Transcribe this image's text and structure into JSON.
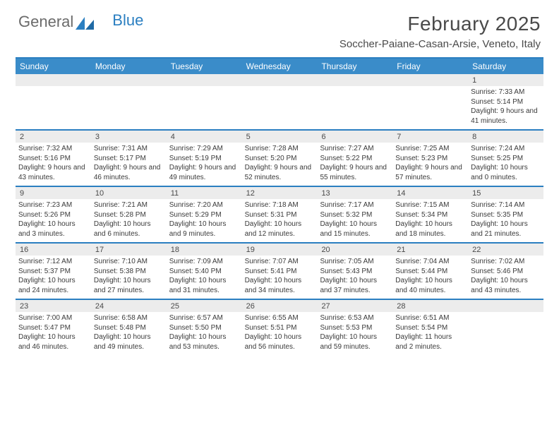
{
  "logo": {
    "part1": "General",
    "part2": "Blue"
  },
  "title": "February 2025",
  "location": "Soccher-Paiane-Casan-Arsie, Veneto, Italy",
  "colors": {
    "accent": "#2b7fc1",
    "header_bg": "#3a8cc9",
    "band_bg": "#ececec",
    "text": "#3a3a3a"
  },
  "day_headers": [
    "Sunday",
    "Monday",
    "Tuesday",
    "Wednesday",
    "Thursday",
    "Friday",
    "Saturday"
  ],
  "weeks": [
    [
      {
        "n": "",
        "sr": "",
        "ss": "",
        "dl": ""
      },
      {
        "n": "",
        "sr": "",
        "ss": "",
        "dl": ""
      },
      {
        "n": "",
        "sr": "",
        "ss": "",
        "dl": ""
      },
      {
        "n": "",
        "sr": "",
        "ss": "",
        "dl": ""
      },
      {
        "n": "",
        "sr": "",
        "ss": "",
        "dl": ""
      },
      {
        "n": "",
        "sr": "",
        "ss": "",
        "dl": ""
      },
      {
        "n": "1",
        "sr": "Sunrise: 7:33 AM",
        "ss": "Sunset: 5:14 PM",
        "dl": "Daylight: 9 hours and 41 minutes."
      }
    ],
    [
      {
        "n": "2",
        "sr": "Sunrise: 7:32 AM",
        "ss": "Sunset: 5:16 PM",
        "dl": "Daylight: 9 hours and 43 minutes."
      },
      {
        "n": "3",
        "sr": "Sunrise: 7:31 AM",
        "ss": "Sunset: 5:17 PM",
        "dl": "Daylight: 9 hours and 46 minutes."
      },
      {
        "n": "4",
        "sr": "Sunrise: 7:29 AM",
        "ss": "Sunset: 5:19 PM",
        "dl": "Daylight: 9 hours and 49 minutes."
      },
      {
        "n": "5",
        "sr": "Sunrise: 7:28 AM",
        "ss": "Sunset: 5:20 PM",
        "dl": "Daylight: 9 hours and 52 minutes."
      },
      {
        "n": "6",
        "sr": "Sunrise: 7:27 AM",
        "ss": "Sunset: 5:22 PM",
        "dl": "Daylight: 9 hours and 55 minutes."
      },
      {
        "n": "7",
        "sr": "Sunrise: 7:25 AM",
        "ss": "Sunset: 5:23 PM",
        "dl": "Daylight: 9 hours and 57 minutes."
      },
      {
        "n": "8",
        "sr": "Sunrise: 7:24 AM",
        "ss": "Sunset: 5:25 PM",
        "dl": "Daylight: 10 hours and 0 minutes."
      }
    ],
    [
      {
        "n": "9",
        "sr": "Sunrise: 7:23 AM",
        "ss": "Sunset: 5:26 PM",
        "dl": "Daylight: 10 hours and 3 minutes."
      },
      {
        "n": "10",
        "sr": "Sunrise: 7:21 AM",
        "ss": "Sunset: 5:28 PM",
        "dl": "Daylight: 10 hours and 6 minutes."
      },
      {
        "n": "11",
        "sr": "Sunrise: 7:20 AM",
        "ss": "Sunset: 5:29 PM",
        "dl": "Daylight: 10 hours and 9 minutes."
      },
      {
        "n": "12",
        "sr": "Sunrise: 7:18 AM",
        "ss": "Sunset: 5:31 PM",
        "dl": "Daylight: 10 hours and 12 minutes."
      },
      {
        "n": "13",
        "sr": "Sunrise: 7:17 AM",
        "ss": "Sunset: 5:32 PM",
        "dl": "Daylight: 10 hours and 15 minutes."
      },
      {
        "n": "14",
        "sr": "Sunrise: 7:15 AM",
        "ss": "Sunset: 5:34 PM",
        "dl": "Daylight: 10 hours and 18 minutes."
      },
      {
        "n": "15",
        "sr": "Sunrise: 7:14 AM",
        "ss": "Sunset: 5:35 PM",
        "dl": "Daylight: 10 hours and 21 minutes."
      }
    ],
    [
      {
        "n": "16",
        "sr": "Sunrise: 7:12 AM",
        "ss": "Sunset: 5:37 PM",
        "dl": "Daylight: 10 hours and 24 minutes."
      },
      {
        "n": "17",
        "sr": "Sunrise: 7:10 AM",
        "ss": "Sunset: 5:38 PM",
        "dl": "Daylight: 10 hours and 27 minutes."
      },
      {
        "n": "18",
        "sr": "Sunrise: 7:09 AM",
        "ss": "Sunset: 5:40 PM",
        "dl": "Daylight: 10 hours and 31 minutes."
      },
      {
        "n": "19",
        "sr": "Sunrise: 7:07 AM",
        "ss": "Sunset: 5:41 PM",
        "dl": "Daylight: 10 hours and 34 minutes."
      },
      {
        "n": "20",
        "sr": "Sunrise: 7:05 AM",
        "ss": "Sunset: 5:43 PM",
        "dl": "Daylight: 10 hours and 37 minutes."
      },
      {
        "n": "21",
        "sr": "Sunrise: 7:04 AM",
        "ss": "Sunset: 5:44 PM",
        "dl": "Daylight: 10 hours and 40 minutes."
      },
      {
        "n": "22",
        "sr": "Sunrise: 7:02 AM",
        "ss": "Sunset: 5:46 PM",
        "dl": "Daylight: 10 hours and 43 minutes."
      }
    ],
    [
      {
        "n": "23",
        "sr": "Sunrise: 7:00 AM",
        "ss": "Sunset: 5:47 PM",
        "dl": "Daylight: 10 hours and 46 minutes."
      },
      {
        "n": "24",
        "sr": "Sunrise: 6:58 AM",
        "ss": "Sunset: 5:48 PM",
        "dl": "Daylight: 10 hours and 49 minutes."
      },
      {
        "n": "25",
        "sr": "Sunrise: 6:57 AM",
        "ss": "Sunset: 5:50 PM",
        "dl": "Daylight: 10 hours and 53 minutes."
      },
      {
        "n": "26",
        "sr": "Sunrise: 6:55 AM",
        "ss": "Sunset: 5:51 PM",
        "dl": "Daylight: 10 hours and 56 minutes."
      },
      {
        "n": "27",
        "sr": "Sunrise: 6:53 AM",
        "ss": "Sunset: 5:53 PM",
        "dl": "Daylight: 10 hours and 59 minutes."
      },
      {
        "n": "28",
        "sr": "Sunrise: 6:51 AM",
        "ss": "Sunset: 5:54 PM",
        "dl": "Daylight: 11 hours and 2 minutes."
      },
      {
        "n": "",
        "sr": "",
        "ss": "",
        "dl": ""
      }
    ]
  ]
}
